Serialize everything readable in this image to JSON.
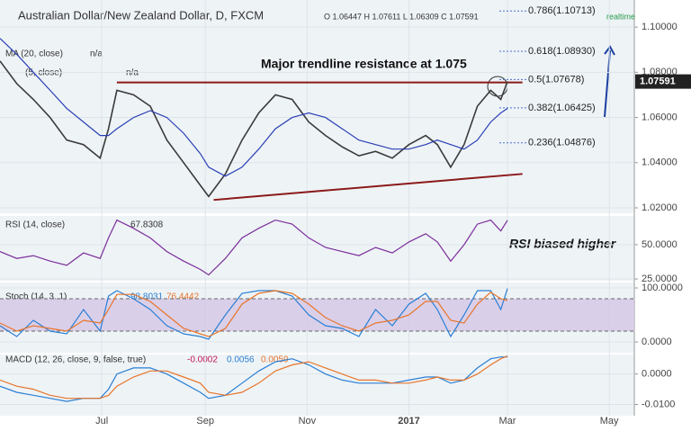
{
  "header": {
    "title": "Australian Dollar/New Zealand Dollar, D, FXCM",
    "ohlc": "O 1.06447 H 1.07611 L 1.06309 C 1.07591",
    "realtime": "realtime"
  },
  "chart_data": [
    {
      "type": "line",
      "title": "MA (20, close)",
      "subtitle": "n/a",
      "indicator2": "(5, close)",
      "indicator2_value": "n/a",
      "annotation": "Major trendline resistance at 1.075",
      "xlim": [
        0,
        380
      ],
      "xticks": [
        {
          "value": 61,
          "label": "Jul"
        },
        {
          "value": 123,
          "label": "Sep"
        },
        {
          "value": 184,
          "label": "Nov"
        },
        {
          "value": 245,
          "label": "2017"
        },
        {
          "value": 304,
          "label": "Mar"
        },
        {
          "value": 365,
          "label": "May"
        }
      ],
      "ylim": [
        1.0176,
        1.112
      ],
      "yticks": [
        {
          "value": 1.02,
          "label": "1.02000"
        },
        {
          "value": 1.04,
          "label": "1.04000"
        },
        {
          "value": 1.06,
          "label": "1.06000"
        },
        {
          "value": 1.08,
          "label": "1.08000"
        },
        {
          "value": 1.1,
          "label": "1.10000"
        }
      ],
      "x": [
        0,
        10,
        20,
        30,
        40,
        50,
        60,
        65,
        70,
        80,
        90,
        100,
        110,
        120,
        125,
        135,
        145,
        155,
        165,
        175,
        185,
        195,
        205,
        215,
        225,
        235,
        245,
        255,
        262,
        270,
        278,
        286,
        294,
        300,
        304
      ],
      "series": [
        {
          "name": "Close",
          "color": "#3a3a3a",
          "values": [
            1.085,
            1.075,
            1.068,
            1.06,
            1.05,
            1.048,
            1.042,
            1.055,
            1.072,
            1.07,
            1.065,
            1.05,
            1.04,
            1.03,
            1.025,
            1.035,
            1.05,
            1.062,
            1.07,
            1.068,
            1.058,
            1.052,
            1.047,
            1.043,
            1.045,
            1.042,
            1.048,
            1.052,
            1.048,
            1.038,
            1.048,
            1.065,
            1.072,
            1.068,
            1.0759
          ]
        },
        {
          "name": "MA (20, close)",
          "color": "#2a3fb5",
          "values": [
            1.095,
            1.088,
            1.08,
            1.072,
            1.064,
            1.058,
            1.052,
            1.052,
            1.055,
            1.06,
            1.063,
            1.06,
            1.053,
            1.044,
            1.038,
            1.034,
            1.038,
            1.046,
            1.055,
            1.06,
            1.062,
            1.06,
            1.055,
            1.05,
            1.048,
            1.046,
            1.046,
            1.048,
            1.05,
            1.048,
            1.046,
            1.05,
            1.058,
            1.062,
            1.064
          ]
        }
      ],
      "trendlines": [
        {
          "color": "#8b1a1a",
          "points": [
            [
              70,
              1.0755
            ],
            [
              313,
              1.0755
            ]
          ]
        },
        {
          "color": "#8b1a1a",
          "points": [
            [
              128,
              1.0235
            ],
            [
              313,
              1.035
            ]
          ]
        }
      ],
      "levels": [
        {
          "label": "0.786(1.10713)",
          "value": 1.10713
        },
        {
          "label": "0.618(1.08930)",
          "value": 1.0893
        },
        {
          "label": "0.5(1.07678)",
          "value": 1.07678
        },
        {
          "label": "0.382(1.06425)",
          "value": 1.06425
        },
        {
          "label": "0.236(1.04876)",
          "value": 1.04876
        }
      ],
      "last": {
        "value": 1.07591,
        "label": "1.07591"
      }
    },
    {
      "type": "line",
      "title": "RSI (14, close)",
      "legend_value": "67.8308",
      "annotation": "RSI biased higher",
      "ylim": [
        23.7,
        71
      ],
      "yticks": [
        {
          "value": 25,
          "label": "25.0000"
        },
        {
          "value": 50,
          "label": "50.0000"
        }
      ],
      "series": [
        {
          "name": "RSI",
          "color": "#7b2d9a",
          "values": [
            45,
            40,
            42,
            38,
            35,
            44,
            40,
            55,
            68,
            62,
            55,
            45,
            38,
            32,
            28,
            40,
            55,
            62,
            68,
            65,
            55,
            48,
            45,
            42,
            48,
            44,
            52,
            58,
            52,
            38,
            50,
            65,
            68,
            60,
            67.8308
          ]
        }
      ]
    },
    {
      "type": "line",
      "title": "Stoch (14, 3, 1)",
      "legend_value": "98.8031",
      "legend_value2": "76.4442",
      "ylim": [
        -20,
        110
      ],
      "bands": [
        20,
        80
      ],
      "yticks": [
        {
          "value": 0,
          "label": "0.0000"
        },
        {
          "value": 100,
          "label": "100.0000"
        }
      ],
      "series": [
        {
          "name": "%K",
          "color": "#2a7fd4",
          "values": [
            30,
            10,
            40,
            20,
            15,
            60,
            20,
            85,
            95,
            80,
            60,
            30,
            15,
            10,
            5,
            50,
            90,
            95,
            95,
            85,
            50,
            30,
            25,
            10,
            60,
            30,
            70,
            90,
            60,
            10,
            50,
            95,
            95,
            60,
            98.8031
          ]
        },
        {
          "name": "%D",
          "color": "#e8752a",
          "values": [
            35,
            20,
            30,
            25,
            20,
            40,
            35,
            60,
            88,
            88,
            75,
            50,
            25,
            15,
            10,
            25,
            70,
            90,
            95,
            90,
            70,
            45,
            30,
            20,
            35,
            40,
            50,
            75,
            75,
            40,
            35,
            70,
            92,
            80,
            76.4442
          ]
        }
      ]
    },
    {
      "type": "line",
      "title": "MACD (12, 26, close, 9, false, true)",
      "legend_value": "-0.0002",
      "legend_value2": "0.0056",
      "legend_value3": "0.0059",
      "ylim": [
        -0.0137,
        0.0064
      ],
      "yticks": [
        {
          "value": -0.01,
          "label": "-0.0100"
        },
        {
          "value": 0,
          "label": "0.0000"
        }
      ],
      "series": [
        {
          "name": "MACD",
          "color": "#2a7fd4",
          "values": [
            -0.004,
            -0.006,
            -0.007,
            -0.008,
            -0.009,
            -0.008,
            -0.008,
            -0.005,
            0,
            0.002,
            0.002,
            0,
            -0.003,
            -0.006,
            -0.008,
            -0.007,
            -0.003,
            0.001,
            0.004,
            0.005,
            0.003,
            0,
            -0.002,
            -0.003,
            -0.003,
            -0.003,
            -0.002,
            -0.001,
            -0.001,
            -0.003,
            -0.002,
            0.002,
            0.005,
            0.0056,
            0.0056
          ]
        },
        {
          "name": "Signal",
          "color": "#e8752a",
          "values": [
            -0.002,
            -0.004,
            -0.005,
            -0.007,
            -0.008,
            -0.008,
            -0.008,
            -0.007,
            -0.004,
            -0.001,
            0.001,
            0.001,
            -0.001,
            -0.003,
            -0.006,
            -0.007,
            -0.006,
            -0.003,
            0.001,
            0.003,
            0.004,
            0.002,
            0,
            -0.002,
            -0.002,
            -0.003,
            -0.003,
            -0.002,
            -0.001,
            -0.002,
            -0.002,
            0,
            0.003,
            0.005,
            0.0059
          ]
        }
      ]
    }
  ]
}
